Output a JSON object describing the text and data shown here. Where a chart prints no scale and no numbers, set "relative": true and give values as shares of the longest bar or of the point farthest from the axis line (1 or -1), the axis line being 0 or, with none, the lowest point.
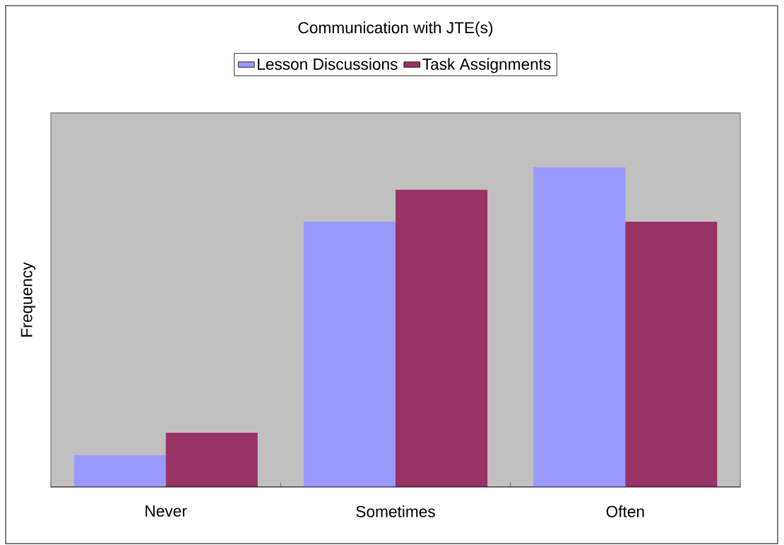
{
  "chart_data": {
    "type": "bar",
    "title": "Communication with JTE(s)",
    "ylabel": "Frequency",
    "categories": [
      "Never",
      "Sometimes",
      "Often"
    ],
    "relative": true,
    "legend": "top",
    "series": [
      {
        "name": "Lesson Discussions",
        "color": "#9999ff",
        "values": [
          0.1,
          0.83,
          1
        ]
      },
      {
        "name": "Task Assignments",
        "color": "#993366",
        "values": [
          0.17,
          0.93,
          0.83
        ]
      }
    ]
  }
}
